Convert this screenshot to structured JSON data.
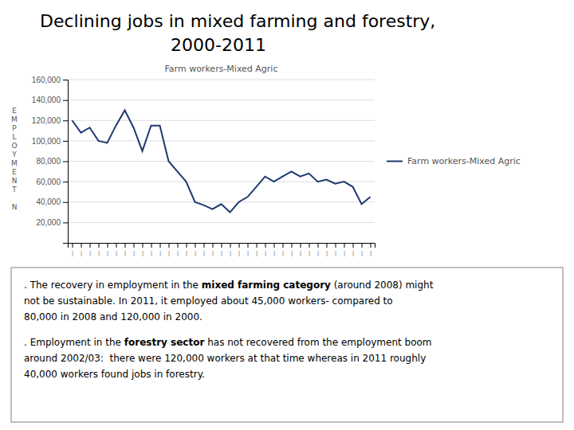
{
  "chart_data": {
    "type": "line",
    "title": [
      "Declining jobs in mixed farming and forestry,",
      "2000-2011"
    ],
    "subtitle": "Farm workers-Mixed Agric",
    "ylabel": "EMPLOYMENT N",
    "categories": [
      "|",
      "|",
      "|",
      "|",
      "|",
      "|",
      "|",
      "|",
      "|",
      "|",
      "|",
      "|",
      "|",
      "|",
      "|",
      "|",
      "|",
      "|",
      "|",
      "|",
      "|",
      "|",
      "|",
      "|",
      "|",
      "|",
      "|",
      "|",
      "|",
      "|",
      "|",
      "|",
      "|",
      "|",
      "|"
    ],
    "series": [
      {
        "name": "Farm workers-Mixed Agric",
        "color": "#1F3A6E",
        "values": [
          120000,
          108000,
          113000,
          100000,
          98000,
          115000,
          130000,
          113000,
          90000,
          115000,
          115000,
          80000,
          70000,
          60000,
          40000,
          37000,
          33000,
          38000,
          30000,
          40000,
          45000,
          55000,
          65000,
          60000,
          65000,
          70000,
          65000,
          68000,
          60000,
          62000,
          58000,
          60000,
          55000,
          38000,
          45000
        ]
      }
    ],
    "ylim": [
      0,
      160000
    ],
    "yticks": [
      {
        "value": 20000,
        "label": "20,000"
      },
      {
        "value": 40000,
        "label": "40,000"
      },
      {
        "value": 60000,
        "label": "60,000"
      },
      {
        "value": 80000,
        "label": "80,000"
      },
      {
        "value": 100000,
        "label": "100,000"
      },
      {
        "value": 120000,
        "label": "120,000"
      },
      {
        "value": 140000,
        "label": "140,000"
      },
      {
        "value": 160000,
        "label": "160,000"
      }
    ],
    "grid": true,
    "legend": "right",
    "annotations": [
      [
        [
          ". The recovery in employment in the ",
          "mixed farming category",
          " (around 2008) might"
        ],
        [
          "not be sustainable. In 2011, it employed about 45,000 workers- compared to"
        ],
        [
          "80,000 in 2008 and 120,000 in 2000."
        ]
      ],
      [
        [
          ". Employment in the ",
          "forestry sector",
          " has not recovered from the employment boom"
        ],
        [
          "around 2002/03:  there were 120,000 workers at that time whereas in 2011 roughly"
        ],
        [
          "40,000 workers found jobs in forestry."
        ]
      ]
    ]
  }
}
